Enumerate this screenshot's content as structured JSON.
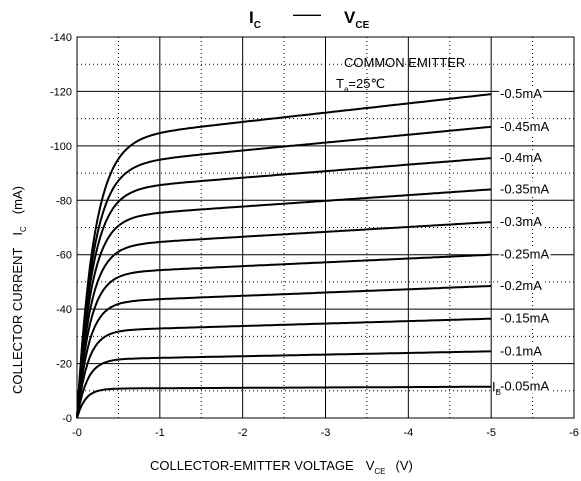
{
  "chart_data": {
    "type": "line",
    "title": {
      "left_main": "I",
      "left_sub": "C",
      "separator": "——",
      "right_main": "V",
      "right_sub": "CE"
    },
    "xlabel": {
      "main": "COLLECTOR-EMITTER VOLTAGE",
      "sym": "V",
      "sub": "CE",
      "unit": "(V)"
    },
    "ylabel": {
      "main": "COLLECTOR CURRENT",
      "sym": "I",
      "sub": "C",
      "unit": "(mA)"
    },
    "xlim": [
      0,
      -6
    ],
    "ylim": [
      0,
      -140
    ],
    "xticks": [
      {
        "v": 0,
        "label": "-0"
      },
      {
        "v": -1,
        "label": "-1"
      },
      {
        "v": -2,
        "label": "-2"
      },
      {
        "v": -3,
        "label": "-3"
      },
      {
        "v": -4,
        "label": "-4"
      },
      {
        "v": -5,
        "label": "-5"
      },
      {
        "v": -6,
        "label": "-6"
      }
    ],
    "yticks": [
      {
        "v": 0,
        "label": "-0"
      },
      {
        "v": -20,
        "label": "-20"
      },
      {
        "v": -40,
        "label": "-40"
      },
      {
        "v": -60,
        "label": "-60"
      },
      {
        "v": -80,
        "label": "-80"
      },
      {
        "v": -100,
        "label": "-100"
      },
      {
        "v": -120,
        "label": "-120"
      },
      {
        "v": -140,
        "label": "-140"
      }
    ],
    "grid": "solid at major ticks, dotted at half-steps",
    "annotation": {
      "line1": "COMMON EMITTER",
      "t_main": "T",
      "t_sub": "a",
      "t_rest": "=25℃"
    },
    "ib_prefix": {
      "main": "I",
      "sub": "B"
    },
    "x_end": -5,
    "series": [
      {
        "name": "-0.05mA",
        "sat": -10.8,
        "end": -11.5,
        "knee": 0.1
      },
      {
        "name": "-0.1mA",
        "sat": -21.5,
        "end": -24.5,
        "knee": 0.12
      },
      {
        "name": "-0.15mA",
        "sat": -32,
        "end": -36.5,
        "knee": 0.13
      },
      {
        "name": "-0.2mA",
        "sat": -42.5,
        "end": -48.5,
        "knee": 0.14
      },
      {
        "name": "-0.25mA",
        "sat": -53,
        "end": -60,
        "knee": 0.15
      },
      {
        "name": "-0.3mA",
        "sat": -63,
        "end": -72,
        "knee": 0.16
      },
      {
        "name": "-0.35mA",
        "sat": -73.5,
        "end": -84,
        "knee": 0.17
      },
      {
        "name": "-0.4mA",
        "sat": -83.5,
        "end": -95.5,
        "knee": 0.18
      },
      {
        "name": "-0.45mA",
        "sat": -92.5,
        "end": -107,
        "knee": 0.19
      },
      {
        "name": "-0.5mA",
        "sat": -102,
        "end": -119,
        "knee": 0.2
      }
    ]
  }
}
